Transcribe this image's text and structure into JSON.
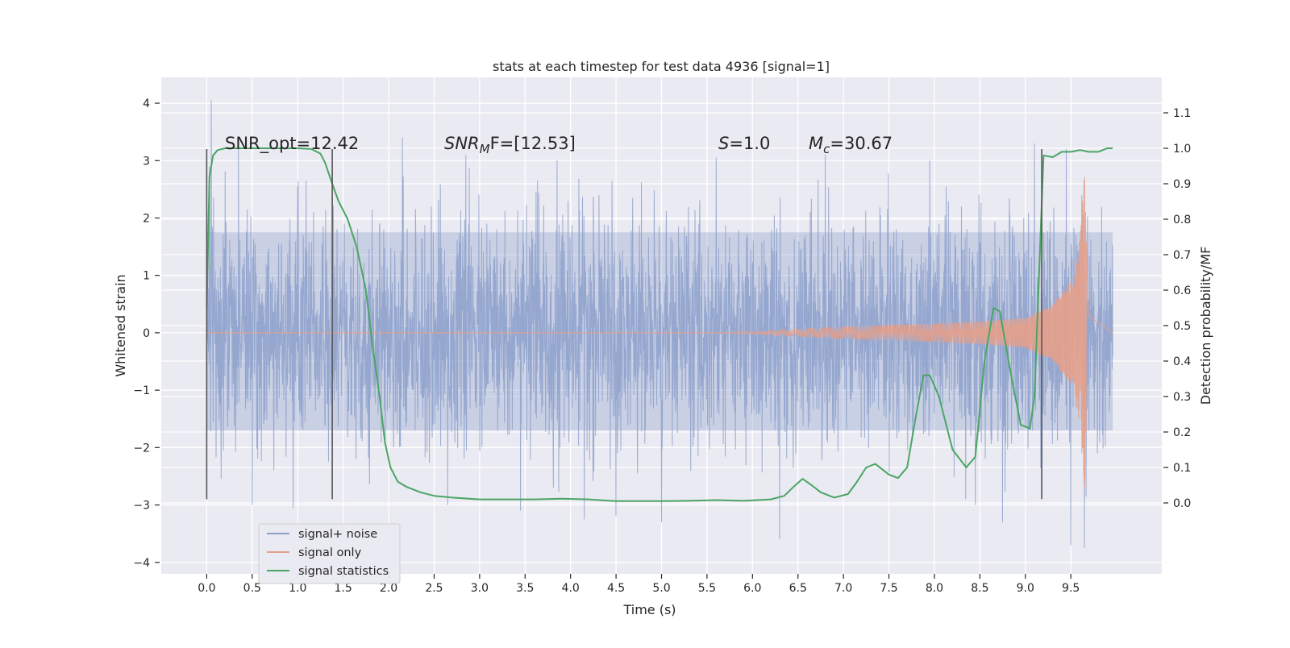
{
  "chart_data": {
    "type": "line",
    "title": "stats at each timestep for test data 4936 [signal=1]",
    "xlabel": "Time (s)",
    "ylabel_left": "Whitened strain",
    "ylabel_right": "Detection probability/MF",
    "xlim": [
      -0.5,
      10.5
    ],
    "ylim_left": [
      -4.2,
      4.45
    ],
    "ylim_right": [
      -0.2,
      1.2
    ],
    "x_ticks": [
      0.0,
      0.5,
      1.0,
      1.5,
      2.0,
      2.5,
      3.0,
      3.5,
      4.0,
      4.5,
      5.0,
      5.5,
      6.0,
      6.5,
      7.0,
      7.5,
      8.0,
      8.5,
      9.0,
      9.5
    ],
    "x_tick_labels": [
      "0.0",
      "0.5",
      "1.0",
      "1.5",
      "2.0",
      "2.5",
      "3.0",
      "3.5",
      "4.0",
      "4.5",
      "5.0",
      "5.5",
      "6.0",
      "6.5",
      "7.0",
      "7.5",
      "8.0",
      "8.5",
      "9.0",
      "9.5"
    ],
    "y_left_ticks": [
      4,
      3,
      2,
      1,
      0,
      -1,
      -2,
      -3,
      -4
    ],
    "y_left_tick_labels": [
      "4",
      "3",
      "2",
      "1",
      "0",
      "−1",
      "−2",
      "−3",
      "−4"
    ],
    "y_right_ticks": [
      1.1,
      1.0,
      0.9,
      0.8,
      0.7,
      0.6,
      0.5,
      0.4,
      0.3,
      0.2,
      0.1,
      0.0
    ],
    "y_right_tick_labels": [
      "1.1",
      "1.0",
      "0.9",
      "0.8",
      "0.7",
      "0.6",
      "0.5",
      "0.4",
      "0.3",
      "0.2",
      "0.1",
      "0.0"
    ],
    "grid": true,
    "legend_position": "lower-left",
    "legend": [
      "signal+ noise",
      "signal only",
      "signal statistics"
    ],
    "colors": {
      "noise": "#8da0cb",
      "signal": "#e5a08a",
      "stats": "#4aa564",
      "vline": "#555555",
      "plot_bg": "#eaeaf2",
      "grid": "#ffffff"
    },
    "annotations": {
      "snr_opt": "SNR_opt=12.42",
      "snr_mf_base": "SNR",
      "snr_mf_sub": "M",
      "snr_mf_rest": "F=[12.53]",
      "s_base": "S",
      "s_rest": "=1.0",
      "mc_base": "M",
      "mc_sub": "c",
      "mc_rest": "=30.67"
    },
    "noise": {
      "x_range": [
        0.0,
        9.96
      ],
      "core_band": [
        -1.7,
        1.75
      ],
      "peaks": [
        [
          0.05,
          4.05
        ],
        [
          0.35,
          3.2
        ],
        [
          0.5,
          -3.0
        ],
        [
          0.95,
          -3.05
        ],
        [
          2.15,
          3.4
        ],
        [
          2.65,
          -3.0
        ],
        [
          2.85,
          3.1
        ],
        [
          3.45,
          -3.1
        ],
        [
          3.85,
          3.0
        ],
        [
          4.15,
          -3.25
        ],
        [
          4.5,
          -3.2
        ],
        [
          5.0,
          -3.3
        ],
        [
          5.6,
          3.05
        ],
        [
          6.3,
          -3.6
        ],
        [
          6.8,
          3.1
        ],
        [
          7.95,
          3.0
        ],
        [
          8.45,
          -3.0
        ],
        [
          8.75,
          -3.3
        ],
        [
          9.1,
          3.3
        ],
        [
          9.45,
          3.2
        ],
        [
          9.5,
          -3.7
        ],
        [
          9.65,
          -3.75
        ]
      ]
    },
    "signal_only": {
      "description_points": [
        [
          0.0,
          0.0
        ],
        [
          5.5,
          0.0
        ],
        [
          6.0,
          0.02
        ],
        [
          6.5,
          0.06
        ],
        [
          7.0,
          0.1
        ],
        [
          7.5,
          0.13
        ],
        [
          8.0,
          0.16
        ],
        [
          8.5,
          0.2
        ],
        [
          9.0,
          0.26
        ],
        [
          9.3,
          0.5
        ],
        [
          9.5,
          0.9
        ],
        [
          9.65,
          2.8
        ],
        [
          9.7,
          0.2
        ],
        [
          9.96,
          0.0
        ]
      ],
      "envelope": [
        [
          0.0,
          0.0
        ],
        [
          5.5,
          0.0
        ],
        [
          6.0,
          0.02
        ],
        [
          6.5,
          0.06
        ],
        [
          7.0,
          0.1
        ],
        [
          7.5,
          0.13
        ],
        [
          8.0,
          0.16
        ],
        [
          8.5,
          0.2
        ],
        [
          9.0,
          0.26
        ],
        [
          9.3,
          0.5
        ],
        [
          9.5,
          0.9
        ],
        [
          9.6,
          1.6
        ],
        [
          9.65,
          2.8
        ],
        [
          9.69,
          0.3
        ],
        [
          9.96,
          0.0
        ]
      ]
    },
    "signal_statistics": {
      "x": [
        0.0,
        0.03,
        0.07,
        0.12,
        0.2,
        0.35,
        0.6,
        1.0,
        1.15,
        1.25,
        1.3,
        1.38,
        1.45,
        1.55,
        1.65,
        1.75,
        1.82,
        1.9,
        1.96,
        2.02,
        2.1,
        2.2,
        2.35,
        2.5,
        2.7,
        3.0,
        3.3,
        3.6,
        3.9,
        4.2,
        4.5,
        4.8,
        5.0,
        5.3,
        5.6,
        5.9,
        6.2,
        6.35,
        6.45,
        6.55,
        6.65,
        6.75,
        6.9,
        7.05,
        7.15,
        7.25,
        7.35,
        7.5,
        7.6,
        7.7,
        7.8,
        7.88,
        7.95,
        8.05,
        8.2,
        8.35,
        8.45,
        8.55,
        8.65,
        8.72,
        8.85,
        8.95,
        9.05,
        9.1,
        9.2,
        9.3,
        9.4,
        9.5,
        9.6,
        9.7,
        9.8,
        9.9,
        9.96
      ],
      "y": [
        0.55,
        0.92,
        0.98,
        0.995,
        1.0,
        1.0,
        1.0,
        1.0,
        0.998,
        0.985,
        0.96,
        0.9,
        0.85,
        0.8,
        0.72,
        0.6,
        0.45,
        0.3,
        0.17,
        0.1,
        0.06,
        0.045,
        0.03,
        0.02,
        0.015,
        0.01,
        0.01,
        0.01,
        0.012,
        0.01,
        0.005,
        0.005,
        0.005,
        0.006,
        0.008,
        0.006,
        0.01,
        0.02,
        0.045,
        0.068,
        0.05,
        0.03,
        0.015,
        0.025,
        0.06,
        0.1,
        0.11,
        0.08,
        0.07,
        0.1,
        0.25,
        0.36,
        0.36,
        0.3,
        0.15,
        0.1,
        0.13,
        0.4,
        0.55,
        0.54,
        0.35,
        0.22,
        0.21,
        0.3,
        0.98,
        0.975,
        0.99,
        0.99,
        0.995,
        0.99,
        0.99,
        1.0,
        1.0
      ]
    },
    "vlines": [
      [
        0.0,
        3.2,
        -2.9
      ],
      [
        1.38,
        3.2,
        -2.9
      ],
      [
        9.18,
        3.2,
        -2.9
      ]
    ]
  }
}
